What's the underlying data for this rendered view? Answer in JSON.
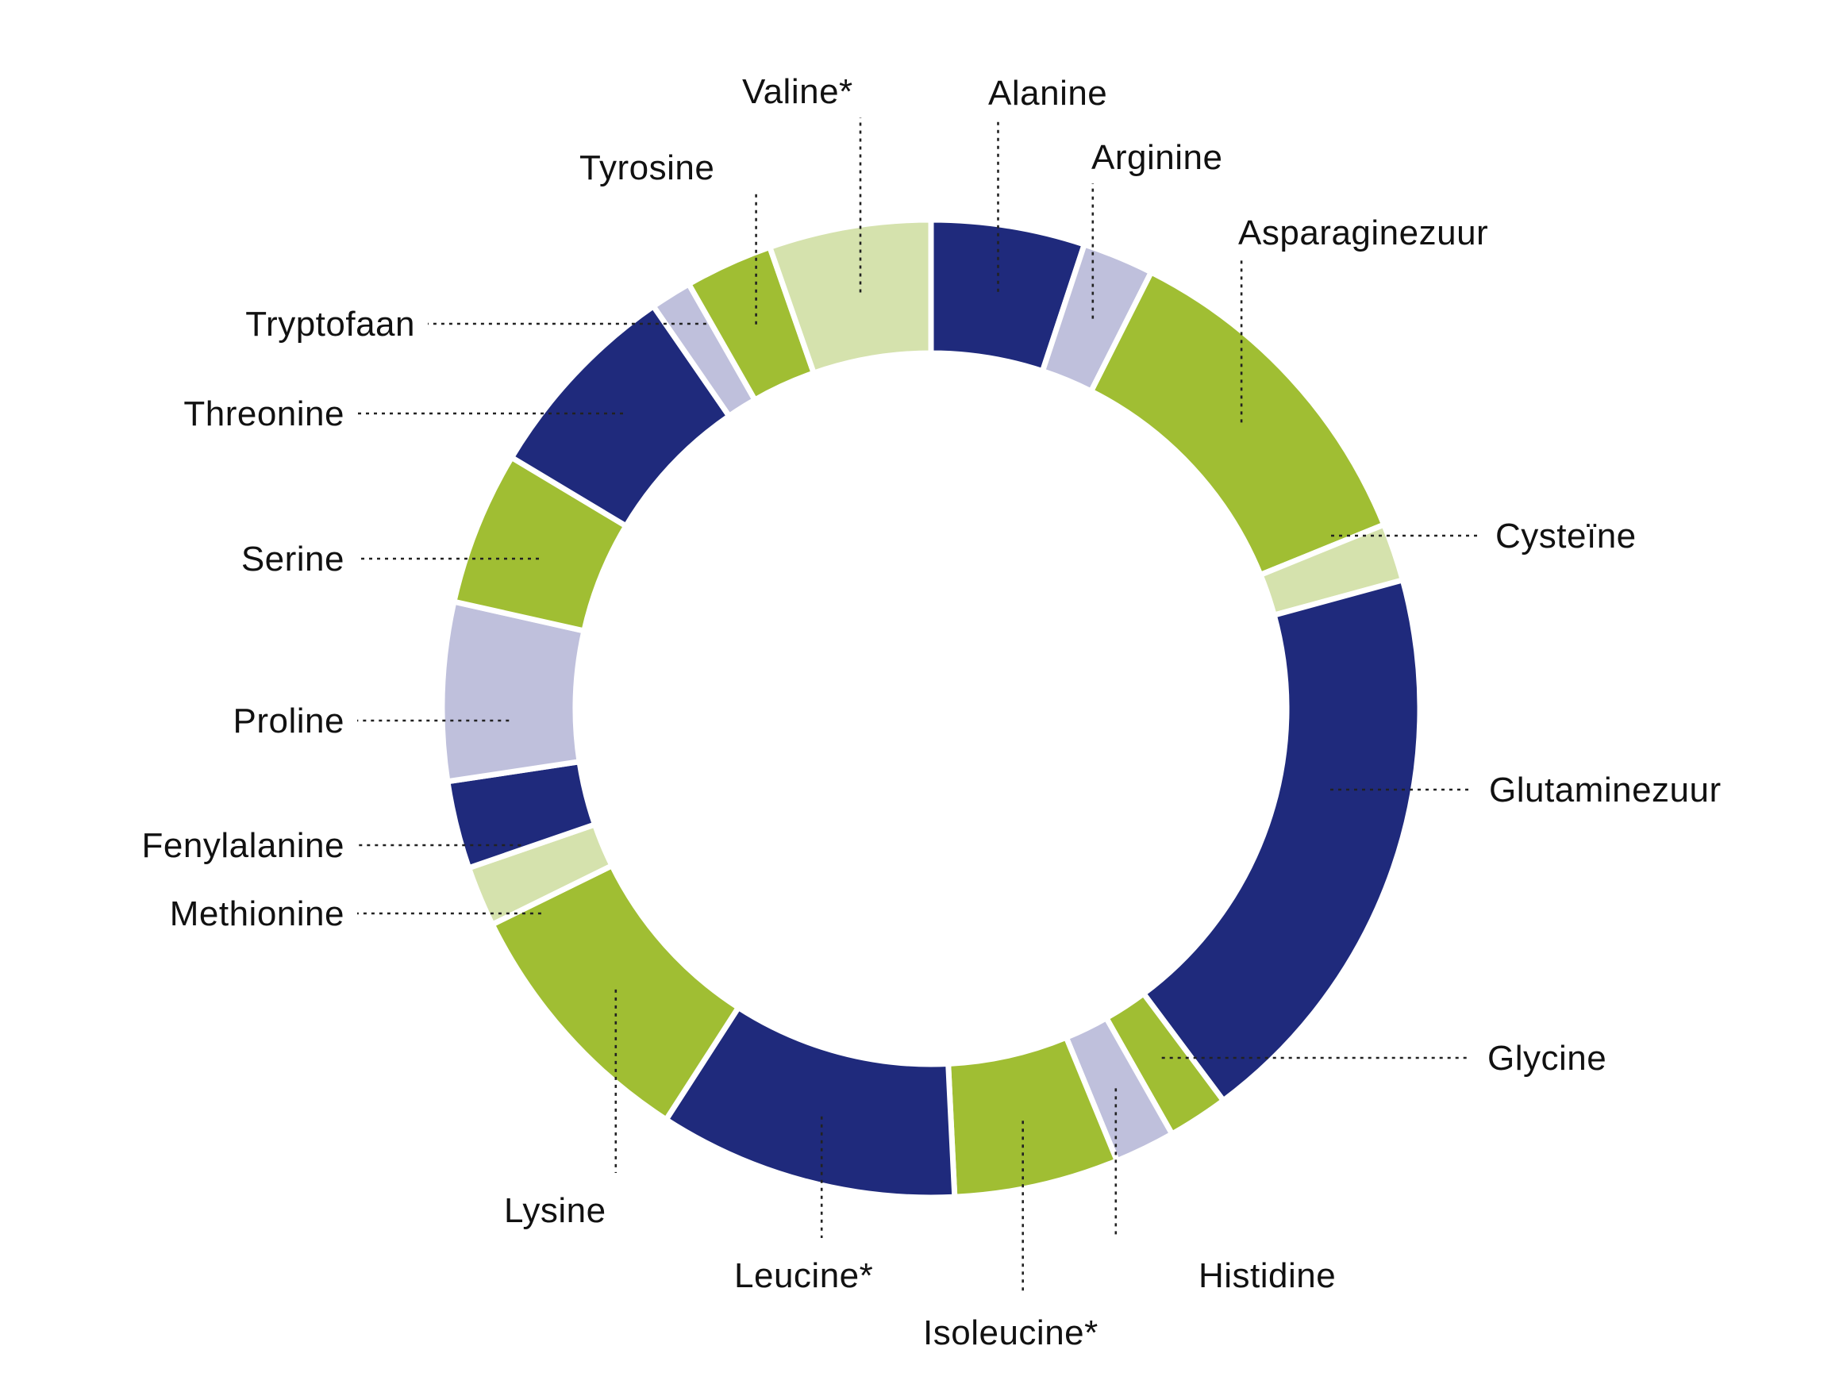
{
  "chart_data": {
    "type": "pie",
    "donut": true,
    "start_angle_deg": 0,
    "direction": "clockwise",
    "unit": "percent",
    "slices": [
      {
        "label": "Alanine",
        "value": 5.6,
        "color": "#1f2a7c"
      },
      {
        "label": "Arginine",
        "value": 2.6,
        "color": "#bfc0dc"
      },
      {
        "label": "Asparaginezuur",
        "value": 12.6,
        "color": "#a0be33"
      },
      {
        "label": "Cysteïne",
        "value": 2.1,
        "color": "#d5e2ad"
      },
      {
        "label": "Glutaminezuur",
        "value": 21.0,
        "color": "#1f2a7c"
      },
      {
        "label": "Glycine",
        "value": 2.2,
        "color": "#a0be33"
      },
      {
        "label": "Histidine",
        "value": 2.2,
        "color": "#bfc0dc"
      },
      {
        "label": "Isoleucine*",
        "value": 6.0,
        "color": "#a0be33"
      },
      {
        "label": "Leucine*",
        "value": 10.9,
        "color": "#1f2a7c"
      },
      {
        "label": "Lysine",
        "value": 9.5,
        "color": "#a0be33"
      },
      {
        "label": "Methionine",
        "value": 2.2,
        "color": "#d5e2ad"
      },
      {
        "label": "Fenylalanine",
        "value": 3.2,
        "color": "#1f2a7c"
      },
      {
        "label": "Proline",
        "value": 6.5,
        "color": "#bfc0dc"
      },
      {
        "label": "Serine",
        "value": 5.6,
        "color": "#a0be33"
      },
      {
        "label": "Threonine",
        "value": 7.5,
        "color": "#1f2a7c"
      },
      {
        "label": "Tryptofaan",
        "value": 1.5,
        "color": "#bfc0dc"
      },
      {
        "label": "Tyrosine",
        "value": 3.2,
        "color": "#a0be33"
      },
      {
        "label": "Valine*",
        "value": 5.9,
        "color": "#d5e2ad"
      }
    ],
    "legend": "none",
    "labels": "outside with dotted leader lines"
  }
}
